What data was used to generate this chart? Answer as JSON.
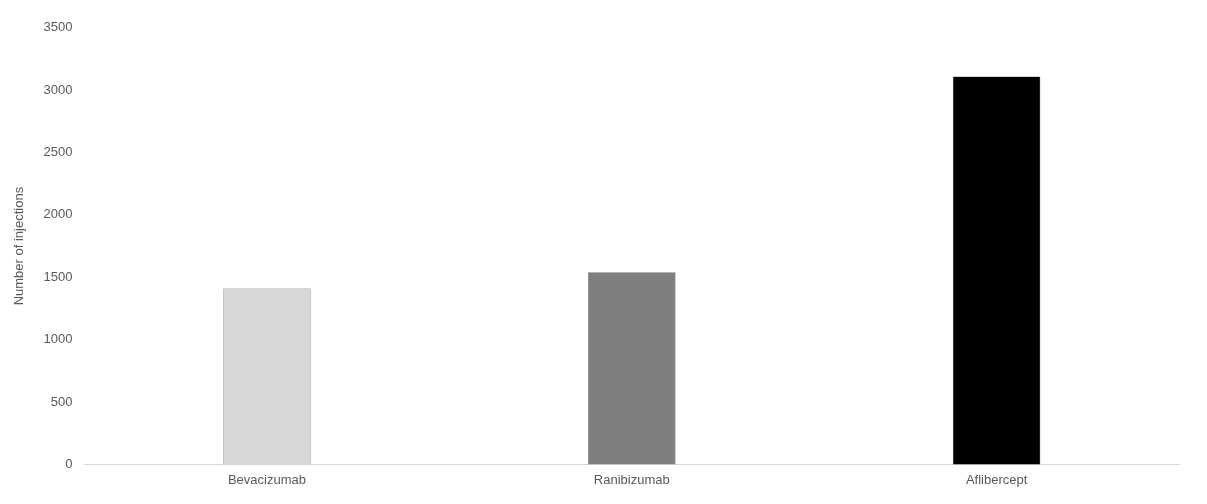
{
  "chart_data": {
    "type": "bar",
    "ylabel": "Number of injections",
    "categories": [
      "Bevacizumab",
      "Ranibizumab",
      "Aflibercept"
    ],
    "values": [
      1410,
      1540,
      3110
    ],
    "colors": [
      "#d8d8d8",
      "#7f7f7f",
      "#000000"
    ],
    "ylim": [
      0,
      3500
    ],
    "yticks": [
      0,
      500,
      1000,
      1500,
      2000,
      2500,
      3000,
      3500
    ],
    "grid": false,
    "legend": false
  }
}
